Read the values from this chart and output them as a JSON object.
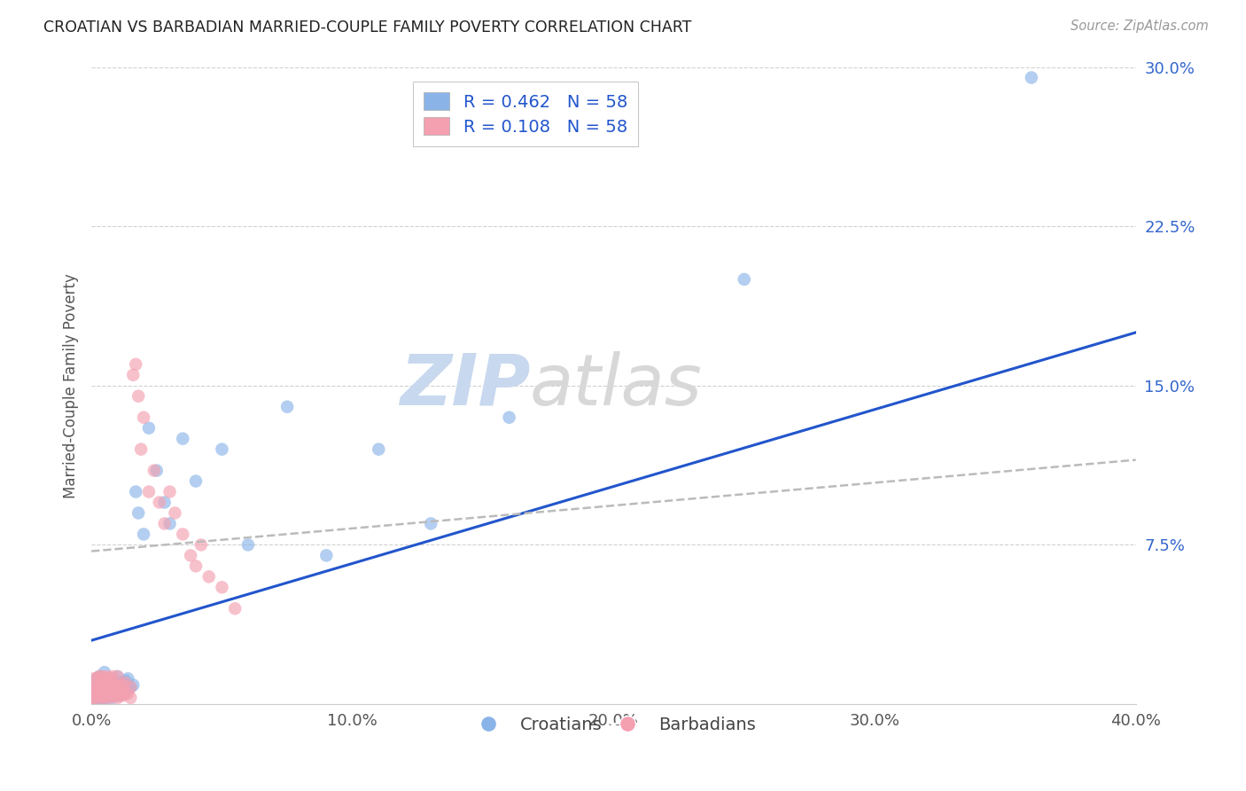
{
  "title": "CROATIAN VS BARBADIAN MARRIED-COUPLE FAMILY POVERTY CORRELATION CHART",
  "source": "Source: ZipAtlas.com",
  "ylabel": "Married-Couple Family Poverty",
  "xlim": [
    0.0,
    0.4
  ],
  "ylim": [
    0.0,
    0.3
  ],
  "croatian_R": 0.462,
  "barbadian_R": 0.108,
  "N": 58,
  "croatian_color": "#8AB4E8",
  "barbadian_color": "#F4A0B0",
  "croatian_line_color": "#2255CC",
  "barbadian_line_color": "#CC3366",
  "croatian_line_x0": 0.0,
  "croatian_line_y0": 0.03,
  "croatian_line_x1": 0.4,
  "croatian_line_y1": 0.175,
  "barbadian_line_x0": 0.0,
  "barbadian_line_y0": 0.072,
  "barbadian_line_x1": 0.4,
  "barbadian_line_y1": 0.115,
  "croatian_scatter_x": [
    0.0,
    0.001,
    0.001,
    0.002,
    0.002,
    0.002,
    0.003,
    0.003,
    0.003,
    0.004,
    0.004,
    0.004,
    0.005,
    0.005,
    0.005,
    0.005,
    0.006,
    0.006,
    0.006,
    0.007,
    0.007,
    0.007,
    0.008,
    0.008,
    0.008,
    0.009,
    0.009,
    0.01,
    0.01,
    0.01,
    0.011,
    0.011,
    0.012,
    0.012,
    0.013,
    0.013,
    0.014,
    0.014,
    0.015,
    0.016,
    0.017,
    0.018,
    0.02,
    0.022,
    0.025,
    0.028,
    0.03,
    0.035,
    0.04,
    0.05,
    0.06,
    0.075,
    0.09,
    0.11,
    0.13,
    0.16,
    0.25,
    0.36
  ],
  "croatian_scatter_y": [
    0.005,
    0.005,
    0.01,
    0.002,
    0.006,
    0.012,
    0.003,
    0.007,
    0.013,
    0.002,
    0.007,
    0.012,
    0.003,
    0.006,
    0.01,
    0.015,
    0.003,
    0.007,
    0.011,
    0.004,
    0.008,
    0.012,
    0.003,
    0.007,
    0.011,
    0.005,
    0.009,
    0.004,
    0.008,
    0.013,
    0.005,
    0.01,
    0.005,
    0.01,
    0.006,
    0.011,
    0.007,
    0.012,
    0.008,
    0.009,
    0.1,
    0.09,
    0.08,
    0.13,
    0.11,
    0.095,
    0.085,
    0.125,
    0.105,
    0.12,
    0.075,
    0.14,
    0.07,
    0.12,
    0.085,
    0.135,
    0.2,
    0.295
  ],
  "barbadian_scatter_x": [
    0.0,
    0.0,
    0.001,
    0.001,
    0.001,
    0.002,
    0.002,
    0.002,
    0.003,
    0.003,
    0.003,
    0.004,
    0.004,
    0.004,
    0.005,
    0.005,
    0.005,
    0.006,
    0.006,
    0.006,
    0.007,
    0.007,
    0.007,
    0.008,
    0.008,
    0.008,
    0.009,
    0.009,
    0.01,
    0.01,
    0.01,
    0.011,
    0.011,
    0.012,
    0.012,
    0.013,
    0.013,
    0.014,
    0.015,
    0.015,
    0.016,
    0.017,
    0.018,
    0.019,
    0.02,
    0.022,
    0.024,
    0.026,
    0.028,
    0.03,
    0.032,
    0.035,
    0.038,
    0.04,
    0.042,
    0.045,
    0.05,
    0.055
  ],
  "barbadian_scatter_y": [
    0.003,
    0.008,
    0.003,
    0.007,
    0.012,
    0.003,
    0.007,
    0.012,
    0.004,
    0.008,
    0.013,
    0.003,
    0.007,
    0.013,
    0.003,
    0.007,
    0.012,
    0.004,
    0.008,
    0.013,
    0.003,
    0.007,
    0.012,
    0.004,
    0.008,
    0.013,
    0.004,
    0.009,
    0.003,
    0.008,
    0.013,
    0.004,
    0.009,
    0.004,
    0.009,
    0.005,
    0.01,
    0.005,
    0.003,
    0.008,
    0.155,
    0.16,
    0.145,
    0.12,
    0.135,
    0.1,
    0.11,
    0.095,
    0.085,
    0.1,
    0.09,
    0.08,
    0.07,
    0.065,
    0.075,
    0.06,
    0.055,
    0.045
  ],
  "background_color": "#FFFFFF",
  "grid_color": "#CCCCCC",
  "watermark_zip": "ZIP",
  "watermark_atlas": "atlas",
  "legend_croatian_label": "R = 0.462   N = 58",
  "legend_barbadian_label": "R = 0.108   N = 58"
}
